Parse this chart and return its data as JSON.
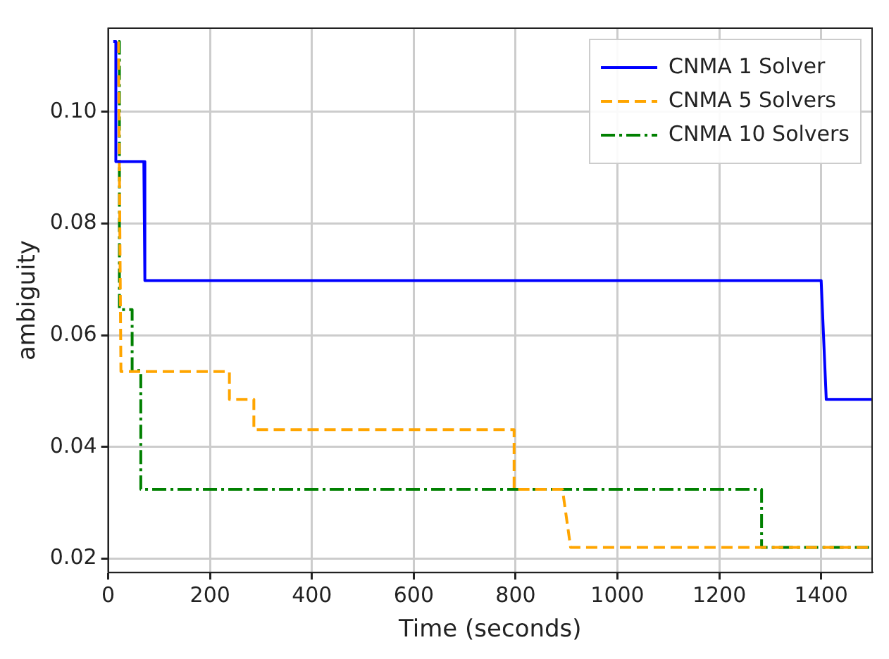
{
  "chart_data": {
    "type": "line",
    "xlabel": "Time (seconds)",
    "ylabel": "ambiguity",
    "xlim": [
      0,
      1500
    ],
    "xticks": [
      0,
      200,
      400,
      600,
      800,
      1000,
      1200,
      1400
    ],
    "ylim": [
      0.0175,
      0.115
    ],
    "yticks": [
      {
        "value": 0.02,
        "label": "0.02"
      },
      {
        "value": 0.04,
        "label": "0.04"
      },
      {
        "value": 0.06,
        "label": "0.06"
      },
      {
        "value": 0.08,
        "label": "0.08"
      },
      {
        "value": 0.1,
        "label": "0.10"
      }
    ],
    "grid": true,
    "legend": "top right",
    "marker": "none",
    "series": [
      {
        "name": "CNMA 1 Solver",
        "color": "#0000ff",
        "line_style": "solid",
        "x": [
          10,
          15,
          15,
          70,
          72,
          1400,
          1410,
          1500
        ],
        "values": [
          0.1126,
          0.1126,
          0.0911,
          0.0911,
          0.0698,
          0.0698,
          0.0485,
          0.0485
        ]
      },
      {
        "name": "CNMA 5 Solvers",
        "color": "#ffa500",
        "line_style": "dashed",
        "x": [
          20,
          25,
          25,
          238,
          238,
          286,
          286,
          797,
          797,
          892,
          908,
          1500
        ],
        "values": [
          0.1126,
          0.0535,
          0.0535,
          0.0535,
          0.0485,
          0.0485,
          0.0431,
          0.0431,
          0.0324,
          0.0324,
          0.022,
          0.022
        ]
      },
      {
        "name": "CNMA 10 Solvers",
        "color": "#008000",
        "line_style": "dashdot",
        "x": [
          20,
          22,
          22,
          47,
          47,
          64,
          64,
          1283,
          1283,
          1500
        ],
        "values": [
          0.1126,
          0.1126,
          0.0646,
          0.0646,
          0.0537,
          0.0537,
          0.0324,
          0.0324,
          0.022,
          0.022
        ]
      }
    ]
  }
}
